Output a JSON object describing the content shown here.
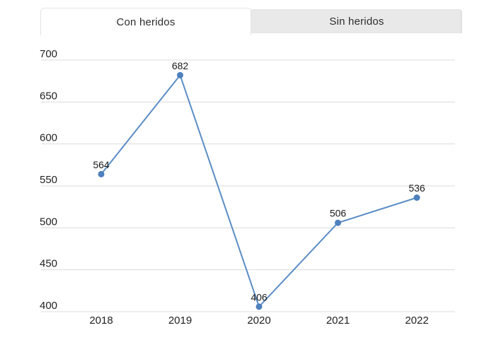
{
  "tabs": [
    {
      "label": "Con heridos",
      "active": true
    },
    {
      "label": "Sin heridos",
      "active": false
    }
  ],
  "colors": {
    "line": "#5b8dc5",
    "point": "#4d80bd",
    "gridline": "#dcdcdc",
    "tick_text": "#222222",
    "value_label_text": "#1a1a1a",
    "tab_inactive_bg": "#e9e9e9",
    "tab_border": "#e3e3e3"
  },
  "chart_data": {
    "type": "line",
    "title": "",
    "xlabel": "",
    "ylabel": "",
    "categories": [
      "2018",
      "2019",
      "2020",
      "2021",
      "2022"
    ],
    "series": [
      {
        "name": "Con heridos",
        "values": [
          564,
          682,
          406,
          506,
          536
        ]
      }
    ],
    "ylim": [
      400,
      700
    ],
    "y_ticks": [
      700,
      650,
      600,
      550,
      500,
      450,
      400
    ],
    "grid": true,
    "legend_position": "none",
    "point_labels_visible": true
  }
}
